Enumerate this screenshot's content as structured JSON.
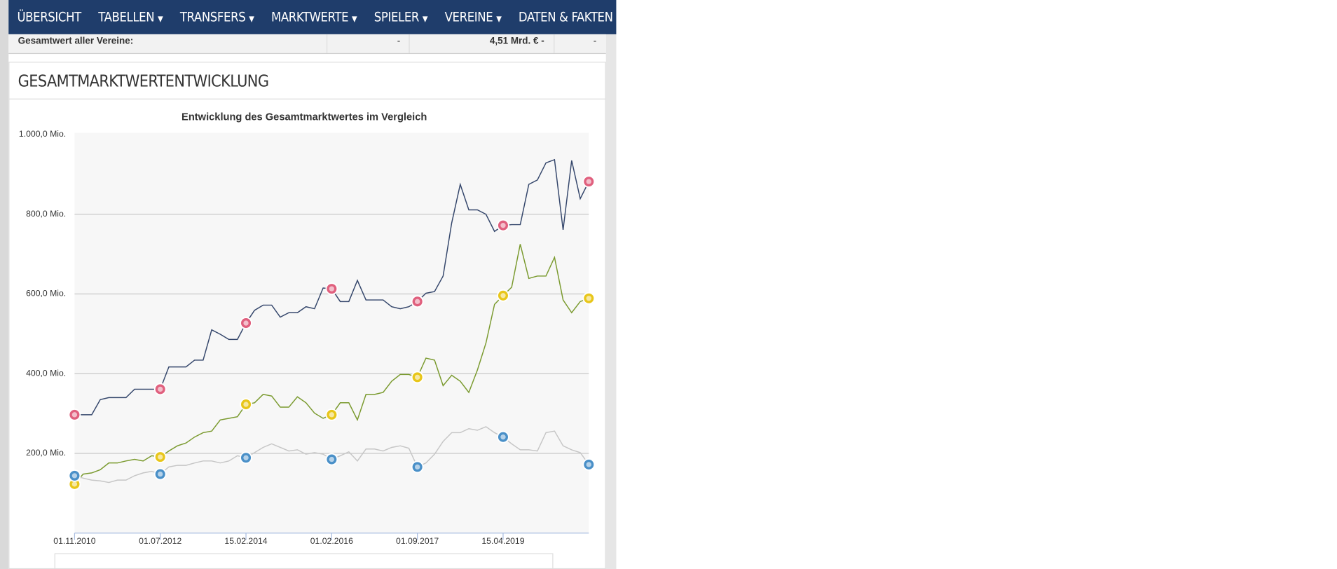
{
  "nav": [
    "ÜBERSICHT",
    "TABELLEN",
    "TRANSFERS",
    "MARKTWERTE",
    "SPIELER",
    "VEREINE",
    "DATEN & FAKTEN"
  ],
  "summary": {
    "label": "Gesamtwert aller Vereine:",
    "cells": [
      "-",
      "4,51 Mrd. € -",
      "-"
    ]
  },
  "section_title": "GESAMTMARKTWERTENTWICKLUNG",
  "chart_data": {
    "type": "line",
    "title": "Entwicklung des Gesamtmarktwertes im Vergleich",
    "categories": [
      "01.11.2010",
      null,
      null,
      null,
      null,
      null,
      null,
      null,
      null,
      null,
      "01.07.2012",
      null,
      null,
      null,
      null,
      null,
      null,
      null,
      null,
      null,
      "15.02.2014",
      null,
      null,
      null,
      null,
      null,
      null,
      null,
      null,
      null,
      "01.02.2016",
      null,
      null,
      null,
      null,
      null,
      null,
      null,
      null,
      null,
      "01.09.2017",
      null,
      null,
      null,
      null,
      null,
      null,
      null,
      null,
      null,
      "15.04.2019",
      null,
      null,
      null,
      null,
      null,
      null,
      null,
      null,
      null,
      null
    ],
    "ylim": [
      0,
      1000
    ],
    "yticks": [
      {
        "value": 1000,
        "label": "1.000,0 Mio."
      },
      {
        "value": 800,
        "label": "800,0 Mio."
      },
      {
        "value": 600,
        "label": "600,0 Mio."
      },
      {
        "value": 400,
        "label": "400,0 Mio."
      },
      {
        "value": 200,
        "label": "200,0 Mio."
      }
    ],
    "grid": true,
    "series": [
      {
        "color": "#34466b",
        "marker": "#e0607e",
        "values": [
          297,
          297,
          297,
          335,
          340,
          340,
          340,
          361,
          361,
          361,
          361,
          417,
          417,
          417,
          434,
          434,
          510,
          499,
          486,
          486,
          527,
          559,
          572,
          572,
          542,
          553,
          553,
          568,
          563,
          615,
          613,
          581,
          581,
          634,
          585,
          585,
          585,
          568,
          563,
          568,
          581,
          602,
          606,
          645,
          778,
          875,
          811,
          811,
          800,
          757,
          772,
          774,
          774,
          875,
          886,
          929,
          937,
          761,
          935,
          839,
          882
        ]
      },
      {
        "color": "#7a9a2e",
        "marker": "#e8c61a",
        "values": [
          123,
          148,
          151,
          159,
          176,
          176,
          181,
          185,
          181,
          194,
          191,
          206,
          219,
          226,
          241,
          252,
          256,
          284,
          288,
          292,
          323,
          327,
          348,
          344,
          316,
          316,
          342,
          327,
          301,
          288,
          297,
          327,
          327,
          284,
          348,
          348,
          353,
          381,
          398,
          398,
          391,
          439,
          434,
          370,
          396,
          381,
          353,
          409,
          477,
          574,
          596,
          617,
          725,
          639,
          645,
          645,
          692,
          585,
          553,
          581,
          589
        ]
      },
      {
        "color": "#c6c6c6",
        "marker": "#4a90c8",
        "values": [
          144,
          138,
          133,
          131,
          127,
          133,
          133,
          144,
          151,
          155,
          148,
          166,
          170,
          170,
          176,
          181,
          181,
          176,
          181,
          194,
          189,
          202,
          215,
          224,
          215,
          206,
          209,
          198,
          202,
          198,
          185,
          194,
          204,
          181,
          211,
          211,
          206,
          215,
          219,
          213,
          166,
          176,
          198,
          230,
          252,
          252,
          262,
          258,
          267,
          252,
          241,
          224,
          209,
          209,
          206,
          252,
          256,
          219,
          209,
          202,
          172
        ]
      }
    ]
  }
}
